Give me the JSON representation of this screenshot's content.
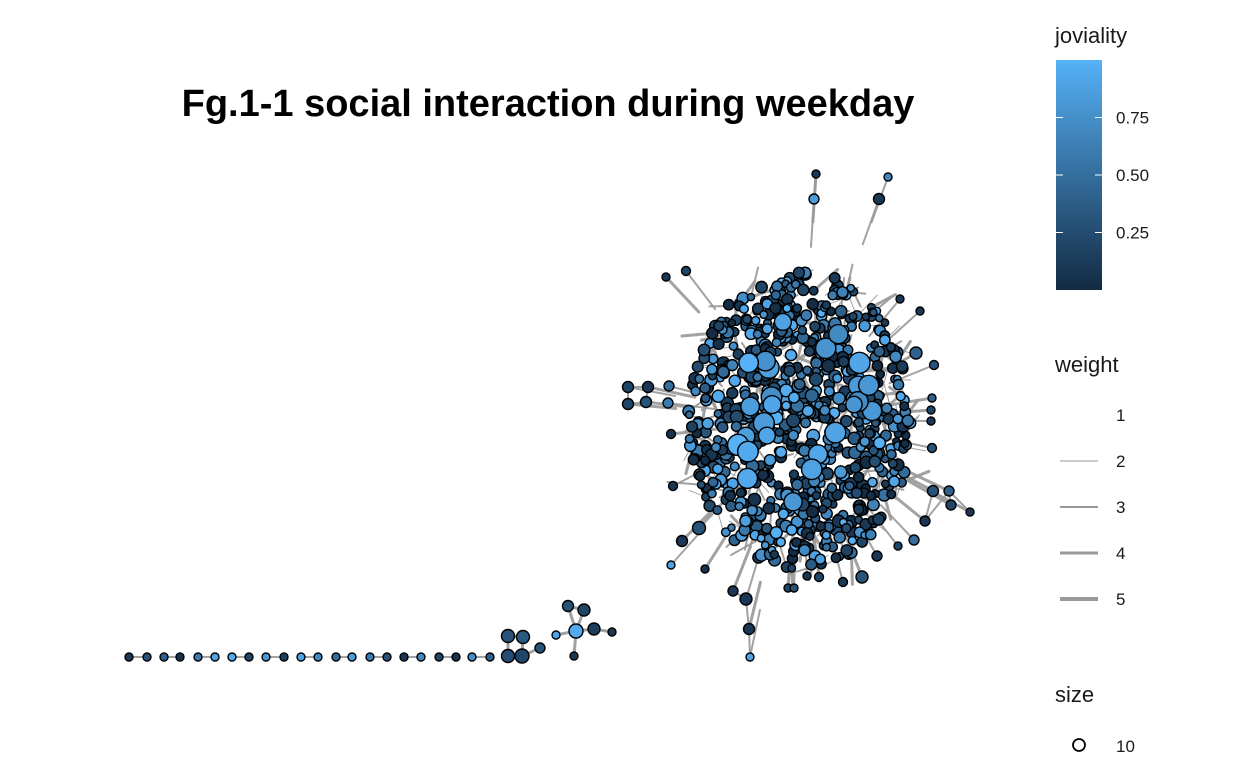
{
  "chart_data": {
    "type": "scatter",
    "subtype": "network-graph",
    "title": "Fg.1-1 social interaction during weekday",
    "xlabel": "",
    "ylabel": "",
    "grid": false,
    "colors": {
      "low": "#132B43",
      "high": "#56B1F7",
      "edge": "#999999",
      "node_stroke": "#000000"
    },
    "legends": {
      "color": {
        "title": "joviality",
        "ticks": [
          "0.25",
          "0.50",
          "0.75"
        ],
        "tick_values": [
          0.25,
          0.5,
          0.75
        ],
        "range": [
          0,
          1
        ]
      },
      "edge_width": {
        "title": "weight",
        "items": [
          "1",
          "2",
          "3",
          "4",
          "5"
        ],
        "widths": [
          0,
          1,
          2,
          3,
          4
        ]
      },
      "size": {
        "title": "size",
        "items": [
          "10"
        ]
      }
    },
    "chain_nodes": {
      "x": [
        129,
        147,
        164,
        180,
        198,
        215,
        232,
        249,
        266,
        284,
        301,
        318,
        336,
        352,
        370,
        387,
        404,
        421,
        439,
        456,
        472,
        490
      ],
      "joviality": [
        0.1,
        0.3,
        0.4,
        0.05,
        0.6,
        0.9,
        0.95,
        0.2,
        0.8,
        0.15,
        0.9,
        0.7,
        0.5,
        0.85,
        0.6,
        0.3,
        0.1,
        0.7,
        0.2,
        0.05,
        0.75,
        0.4
      ]
    },
    "small_cluster": [
      [
        508,
        636,
        0.3,
        13
      ],
      [
        523,
        637,
        0.35,
        13
      ],
      [
        508,
        656,
        0.25,
        13
      ],
      [
        522,
        656,
        0.2,
        14
      ],
      [
        540,
        648,
        0.3,
        10
      ],
      [
        556,
        635,
        0.9,
        8
      ],
      [
        568,
        606,
        0.3,
        11
      ],
      [
        584,
        610,
        0.2,
        12
      ],
      [
        576,
        631,
        0.95,
        14
      ],
      [
        594,
        629,
        0.15,
        12
      ],
      [
        612,
        632,
        0.1,
        8
      ],
      [
        574,
        656,
        0.1,
        8
      ]
    ],
    "outliers": [
      [
        816,
        174,
        0.1,
        8
      ],
      [
        888,
        177,
        0.7,
        8
      ],
      [
        814,
        199,
        0.85,
        10
      ],
      [
        879,
        199,
        0.1,
        11
      ],
      [
        628,
        387,
        0.2,
        11
      ],
      [
        648,
        387,
        0.1,
        11
      ],
      [
        628,
        404,
        0.2,
        11
      ],
      [
        646,
        402,
        0.3,
        11
      ],
      [
        669,
        386,
        0.5,
        10
      ],
      [
        668,
        403,
        0.6,
        10
      ],
      [
        671,
        434,
        0.05,
        9
      ],
      [
        673,
        486,
        0.1,
        9
      ],
      [
        671,
        565,
        0.9,
        8
      ],
      [
        682,
        541,
        0.1,
        11
      ],
      [
        699,
        528,
        0.3,
        13
      ],
      [
        705,
        569,
        0.05,
        8
      ],
      [
        733,
        591,
        0.1,
        10
      ],
      [
        746,
        599,
        0.1,
        12
      ],
      [
        749,
        629,
        0.1,
        11
      ],
      [
        750,
        657,
        0.9,
        8
      ],
      [
        788,
        588,
        0.2,
        8
      ],
      [
        794,
        588,
        0.3,
        8
      ],
      [
        807,
        576,
        0.1,
        8
      ],
      [
        819,
        577,
        0.2,
        9
      ],
      [
        843,
        582,
        0.1,
        9
      ],
      [
        862,
        577,
        0.3,
        12
      ],
      [
        877,
        556,
        0.1,
        10
      ],
      [
        898,
        546,
        0.2,
        8
      ],
      [
        914,
        540,
        0.5,
        10
      ],
      [
        925,
        521,
        0.1,
        10
      ],
      [
        933,
        491,
        0.3,
        11
      ],
      [
        949,
        491,
        0.4,
        10
      ],
      [
        951,
        505,
        0.2,
        10
      ],
      [
        970,
        512,
        0.1,
        8
      ],
      [
        932,
        448,
        0.3,
        9
      ],
      [
        931,
        410,
        0.2,
        8
      ],
      [
        931,
        421,
        0.1,
        8
      ],
      [
        932,
        398,
        0.4,
        8
      ],
      [
        934,
        365,
        0.3,
        9
      ],
      [
        916,
        353,
        0.4,
        12
      ],
      [
        920,
        311,
        0.1,
        8
      ],
      [
        900,
        299,
        0.1,
        8
      ],
      [
        666,
        277,
        0.1,
        8
      ],
      [
        686,
        271,
        0.2,
        9
      ]
    ]
  }
}
